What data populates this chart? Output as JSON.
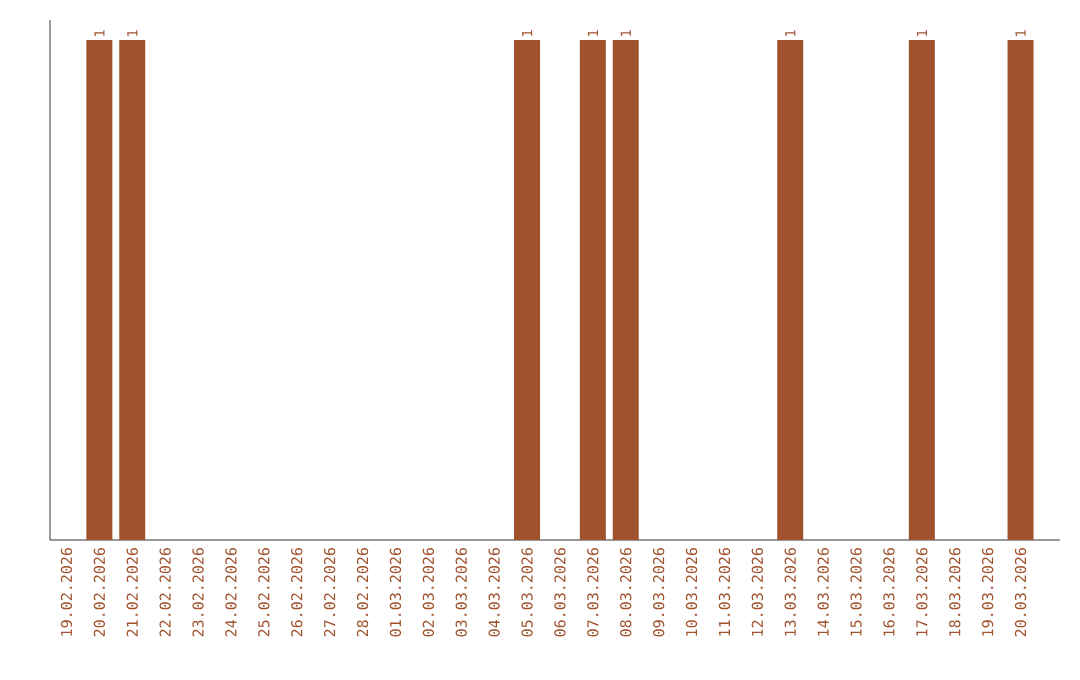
{
  "chart_data": {
    "type": "bar",
    "categories": [
      "19.02.2026",
      "20.02.2026",
      "21.02.2026",
      "22.02.2026",
      "23.02.2026",
      "24.02.2026",
      "25.02.2026",
      "26.02.2026",
      "27.02.2026",
      "28.02.2026",
      "01.03.2026",
      "02.03.2026",
      "03.03.2026",
      "04.03.2026",
      "05.03.2026",
      "06.03.2026",
      "07.03.2026",
      "08.03.2026",
      "09.03.2026",
      "10.03.2026",
      "11.03.2026",
      "12.03.2026",
      "13.03.2026",
      "14.03.2026",
      "15.03.2026",
      "16.03.2026",
      "17.03.2026",
      "18.03.2026",
      "19.03.2026",
      "20.03.2026"
    ],
    "values": [
      0,
      1,
      1,
      0,
      0,
      0,
      0,
      0,
      0,
      0,
      0,
      0,
      0,
      0,
      1,
      0,
      1,
      1,
      0,
      0,
      0,
      0,
      1,
      0,
      0,
      0,
      1,
      0,
      0,
      1
    ],
    "value_labels": [
      null,
      "1",
      "1",
      null,
      null,
      null,
      null,
      null,
      null,
      null,
      null,
      null,
      null,
      null,
      "1",
      null,
      "1",
      "1",
      null,
      null,
      null,
      null,
      "1",
      null,
      null,
      null,
      "1",
      null,
      null,
      "1"
    ],
    "color": "#a0522d",
    "tick_labels": "x"
  }
}
